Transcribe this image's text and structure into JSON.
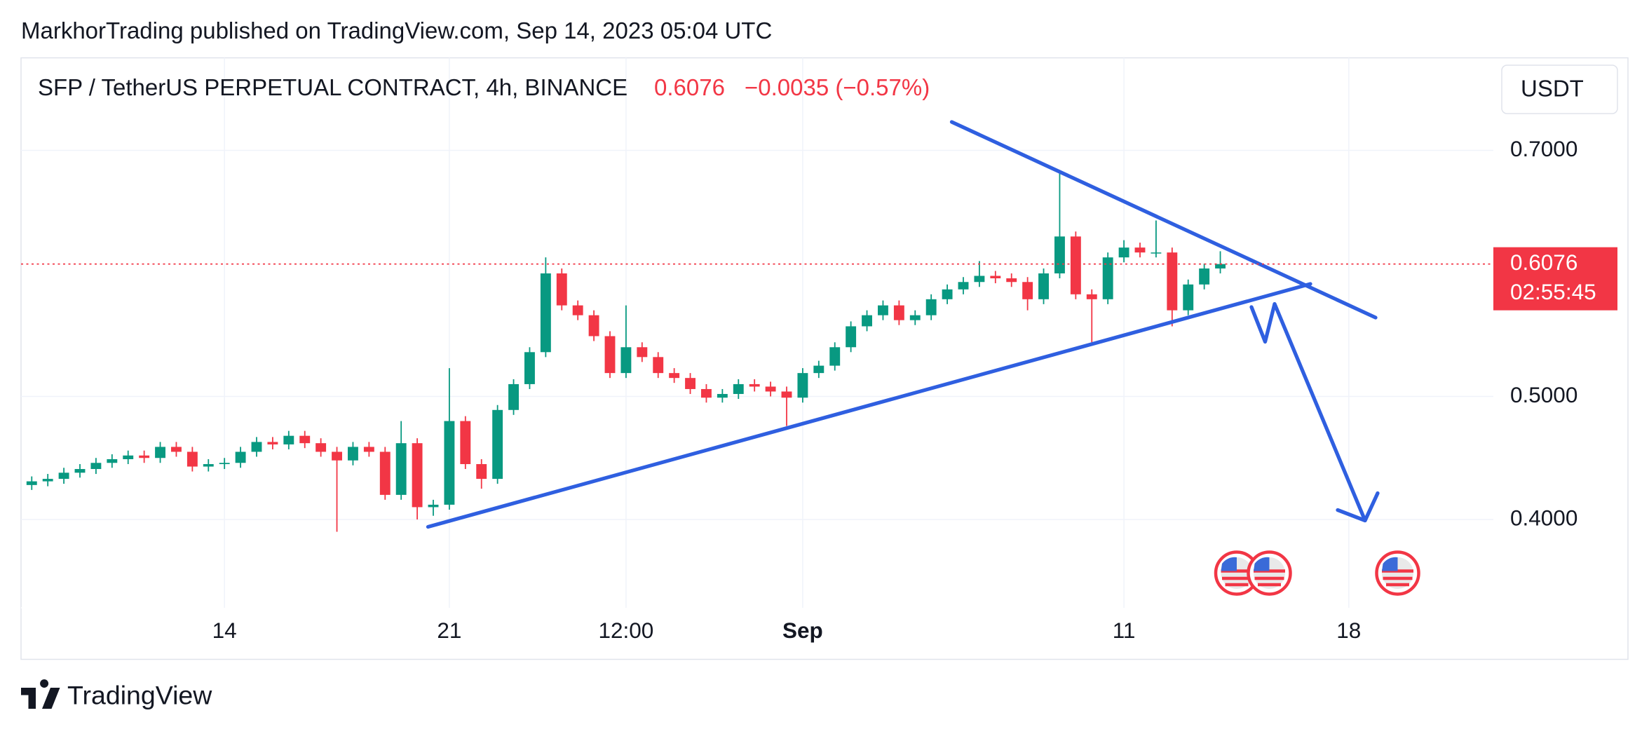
{
  "header": {
    "published": "MarkhorTrading published on TradingView.com, Sep 14, 2023 05:04 UTC",
    "symbol": "SFP / TetherUS PERPETUAL CONTRACT, 4h, BINANCE",
    "change": "−0.0035 (−0.57%)",
    "currency": "USDT",
    "countdown": "02:55:45"
  },
  "footer": {
    "brand": "TradingView"
  },
  "chart_data": {
    "type": "candlestick",
    "up_color": "#089981",
    "down_color": "#f23645",
    "grid": true,
    "last_price": 0.6076,
    "xlim": [
      "2023-08-07T16:00",
      "2023-09-22T12:00"
    ],
    "xticks": [
      {
        "value": "2023-08-14T00:00",
        "label": "14"
      },
      {
        "value": "2023-08-21T00:00",
        "label": "21"
      },
      {
        "value": "2023-08-26T12:00",
        "label": "12:00"
      },
      {
        "value": "2023-09-01T00:00",
        "label": "Sep"
      },
      {
        "value": "2023-09-11T00:00",
        "label": "11"
      },
      {
        "value": "2023-09-18T00:00",
        "label": "18"
      }
    ],
    "ylim": [
      0.3282,
      0.7752
    ],
    "yticks": [
      {
        "value": 0.4,
        "label": "0.4000"
      },
      {
        "value": 0.5,
        "label": "0.5000"
      },
      {
        "value": 0.7,
        "label": "0.7000"
      }
    ],
    "x": [
      "2023-08-08T00:00",
      "2023-08-08T12:00",
      "2023-08-09T00:00",
      "2023-08-09T12:00",
      "2023-08-10T00:00",
      "2023-08-10T12:00",
      "2023-08-11T00:00",
      "2023-08-11T12:00",
      "2023-08-12T00:00",
      "2023-08-12T12:00",
      "2023-08-13T00:00",
      "2023-08-13T12:00",
      "2023-08-14T00:00",
      "2023-08-14T12:00",
      "2023-08-15T00:00",
      "2023-08-15T12:00",
      "2023-08-16T00:00",
      "2023-08-16T12:00",
      "2023-08-17T00:00",
      "2023-08-17T12:00",
      "2023-08-18T00:00",
      "2023-08-18T12:00",
      "2023-08-19T00:00",
      "2023-08-19T12:00",
      "2023-08-20T00:00",
      "2023-08-20T12:00",
      "2023-08-21T00:00",
      "2023-08-21T12:00",
      "2023-08-22T00:00",
      "2023-08-22T12:00",
      "2023-08-23T00:00",
      "2023-08-23T12:00",
      "2023-08-24T00:00",
      "2023-08-24T12:00",
      "2023-08-25T00:00",
      "2023-08-25T12:00",
      "2023-08-26T00:00",
      "2023-08-26T12:00",
      "2023-08-27T00:00",
      "2023-08-27T12:00",
      "2023-08-28T00:00",
      "2023-08-28T12:00",
      "2023-08-29T00:00",
      "2023-08-29T12:00",
      "2023-08-30T00:00",
      "2023-08-30T12:00",
      "2023-08-31T00:00",
      "2023-08-31T12:00",
      "2023-09-01T00:00",
      "2023-09-01T12:00",
      "2023-09-02T00:00",
      "2023-09-02T12:00",
      "2023-09-03T00:00",
      "2023-09-03T12:00",
      "2023-09-04T00:00",
      "2023-09-04T12:00",
      "2023-09-05T00:00",
      "2023-09-05T12:00",
      "2023-09-06T00:00",
      "2023-09-06T12:00",
      "2023-09-07T00:00",
      "2023-09-07T12:00",
      "2023-09-08T00:00",
      "2023-09-08T12:00",
      "2023-09-09T00:00",
      "2023-09-09T12:00",
      "2023-09-10T00:00",
      "2023-09-10T12:00",
      "2023-09-11T00:00",
      "2023-09-11T12:00",
      "2023-09-12T00:00",
      "2023-09-12T12:00",
      "2023-09-13T00:00",
      "2023-09-13T12:00",
      "2023-09-14T00:00"
    ],
    "open": [
      0.428,
      0.431,
      0.433,
      0.438,
      0.441,
      0.446,
      0.449,
      0.452,
      0.45,
      0.459,
      0.455,
      0.443,
      0.445,
      0.446,
      0.455,
      0.463,
      0.461,
      0.468,
      0.462,
      0.455,
      0.448,
      0.459,
      0.455,
      0.42,
      0.462,
      0.41,
      0.412,
      0.48,
      0.445,
      0.433,
      0.489,
      0.51,
      0.536,
      0.6,
      0.574,
      0.566,
      0.549,
      0.519,
      0.54,
      0.532,
      0.519,
      0.515,
      0.506,
      0.499,
      0.502,
      0.51,
      0.508,
      0.504,
      0.499,
      0.519,
      0.525,
      0.54,
      0.557,
      0.566,
      0.574,
      0.562,
      0.566,
      0.579,
      0.587,
      0.593,
      0.598,
      0.596,
      0.593,
      0.579,
      0.6,
      0.63,
      0.583,
      0.579,
      0.613,
      0.621,
      0.617,
      0.617,
      0.57,
      0.591,
      0.604
    ],
    "high": [
      0.435,
      0.437,
      0.442,
      0.445,
      0.45,
      0.453,
      0.456,
      0.456,
      0.463,
      0.463,
      0.459,
      0.449,
      0.45,
      0.459,
      0.467,
      0.467,
      0.472,
      0.472,
      0.466,
      0.459,
      0.463,
      0.463,
      0.459,
      0.48,
      0.466,
      0.416,
      0.523,
      0.484,
      0.449,
      0.493,
      0.514,
      0.54,
      0.613,
      0.604,
      0.578,
      0.57,
      0.553,
      0.574,
      0.544,
      0.536,
      0.523,
      0.519,
      0.51,
      0.506,
      0.514,
      0.514,
      0.512,
      0.508,
      0.523,
      0.529,
      0.544,
      0.561,
      0.57,
      0.578,
      0.578,
      0.57,
      0.583,
      0.591,
      0.597,
      0.61,
      0.602,
      0.6,
      0.597,
      0.604,
      0.684,
      0.634,
      0.587,
      0.617,
      0.627,
      0.625,
      0.643,
      0.621,
      0.595,
      0.608,
      0.618
    ],
    "low": [
      0.424,
      0.427,
      0.429,
      0.434,
      0.437,
      0.442,
      0.445,
      0.446,
      0.446,
      0.451,
      0.439,
      0.439,
      0.441,
      0.442,
      0.451,
      0.457,
      0.457,
      0.458,
      0.451,
      0.39,
      0.444,
      0.451,
      0.416,
      0.416,
      0.4,
      0.403,
      0.408,
      0.441,
      0.425,
      0.429,
      0.485,
      0.506,
      0.532,
      0.57,
      0.562,
      0.545,
      0.515,
      0.515,
      0.528,
      0.515,
      0.511,
      0.502,
      0.495,
      0.495,
      0.498,
      0.504,
      0.5,
      0.476,
      0.495,
      0.515,
      0.521,
      0.536,
      0.553,
      0.562,
      0.558,
      0.558,
      0.562,
      0.575,
      0.583,
      0.589,
      0.592,
      0.589,
      0.57,
      0.575,
      0.596,
      0.579,
      0.544,
      0.575,
      0.609,
      0.613,
      0.613,
      0.557,
      0.566,
      0.587,
      0.6
    ],
    "close": [
      0.431,
      0.433,
      0.438,
      0.441,
      0.446,
      0.449,
      0.452,
      0.45,
      0.459,
      0.455,
      0.443,
      0.445,
      0.446,
      0.455,
      0.463,
      0.461,
      0.468,
      0.462,
      0.455,
      0.448,
      0.459,
      0.455,
      0.42,
      0.462,
      0.41,
      0.412,
      0.48,
      0.445,
      0.433,
      0.489,
      0.51,
      0.536,
      0.6,
      0.574,
      0.566,
      0.549,
      0.519,
      0.54,
      0.532,
      0.519,
      0.515,
      0.506,
      0.499,
      0.502,
      0.51,
      0.508,
      0.504,
      0.499,
      0.519,
      0.525,
      0.54,
      0.557,
      0.566,
      0.574,
      0.562,
      0.566,
      0.579,
      0.587,
      0.593,
      0.598,
      0.596,
      0.593,
      0.579,
      0.6,
      0.63,
      0.583,
      0.579,
      0.613,
      0.621,
      0.617,
      0.617,
      0.57,
      0.591,
      0.604,
      0.6076
    ]
  }
}
